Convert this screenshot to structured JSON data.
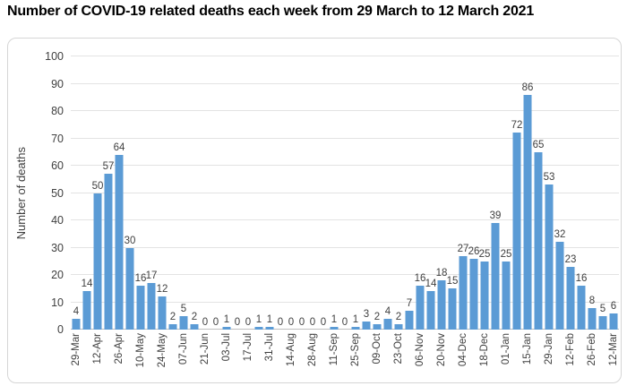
{
  "chart_data": {
    "type": "bar",
    "title": "Number of COVID-19 related deaths each week from 29 March to 12 March 2021",
    "ylabel": "Number of deaths",
    "ylim": [
      0,
      100
    ],
    "yticks": [
      0,
      10,
      20,
      30,
      40,
      50,
      60,
      70,
      80,
      90,
      100
    ],
    "grid": true,
    "legend": "none",
    "data_labels_shown": true,
    "bar_color": "#5b9bd5",
    "label_color": "#404040",
    "gridline_color": "#e3e3e3",
    "axis_line_color": "#bfbfbf",
    "x_ticks_every": 2,
    "x_tick_labels": [
      "29-Mar",
      "12-Apr",
      "26-Apr",
      "10-May",
      "24-May",
      "07-Jun",
      "21-Jun",
      "03-Jul",
      "17-Jul",
      "31-Jul",
      "14-Aug",
      "28-Aug",
      "11-Sep",
      "25-Sep",
      "09-Oct",
      "23-Oct",
      "06-Nov",
      "20-Nov",
      "04-Dec",
      "18-Dec",
      "01-Jan",
      "15-Jan",
      "29-Jan",
      "12-Feb",
      "26-Feb",
      "12-Mar"
    ],
    "values": [
      4,
      14,
      50,
      57,
      64,
      30,
      16,
      17,
      12,
      2,
      5,
      2,
      0,
      0,
      1,
      0,
      0,
      1,
      1,
      0,
      0,
      0,
      0,
      0,
      1,
      0,
      1,
      3,
      2,
      4,
      2,
      7,
      16,
      14,
      18,
      15,
      27,
      26,
      25,
      39,
      25,
      72,
      86,
      65,
      53,
      32,
      23,
      16,
      8,
      5,
      6
    ]
  }
}
